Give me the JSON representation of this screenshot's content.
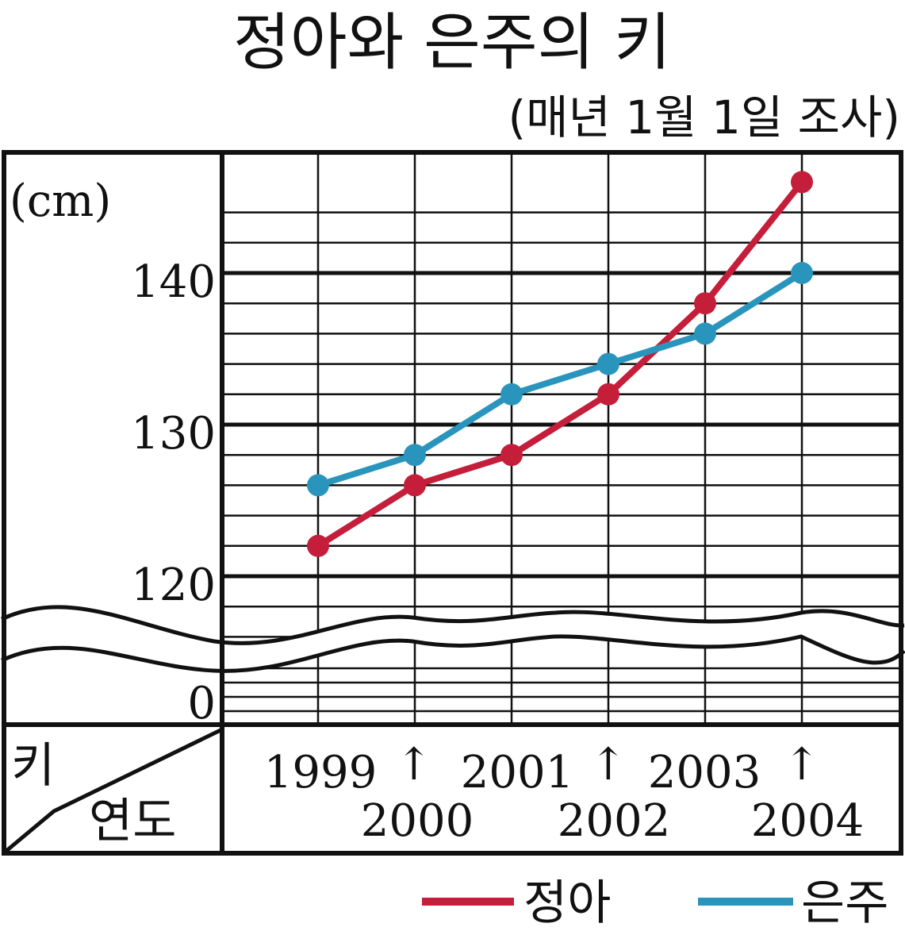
{
  "chart_data": {
    "type": "line",
    "title": "정아와 은주의 키",
    "subtitle": "(매년 1월 1일 조사)",
    "unit_label": "(cm)",
    "corner_labels": {
      "value_axis": "키",
      "category_axis": "연도"
    },
    "categories": [
      "1999",
      "2000",
      "2001",
      "2002",
      "2003",
      "2004"
    ],
    "year_labels_top": [
      "1999",
      "2001",
      "2003"
    ],
    "year_labels_bottom": [
      "2000",
      "2002",
      "2004"
    ],
    "arrow_glyph": "↑",
    "y_ticks": [
      "140",
      "130",
      "120",
      "0"
    ],
    "ylim": [
      115,
      146
    ],
    "axis_break": true,
    "grid": true,
    "legend_position": "bottom-right",
    "series": [
      {
        "name": "정아",
        "color": "#c41e3a",
        "values": [
          122,
          126,
          128,
          132,
          138,
          146
        ]
      },
      {
        "name": "은주",
        "color": "#2a95bc",
        "values": [
          126,
          128,
          132,
          134,
          136,
          140
        ]
      }
    ]
  }
}
